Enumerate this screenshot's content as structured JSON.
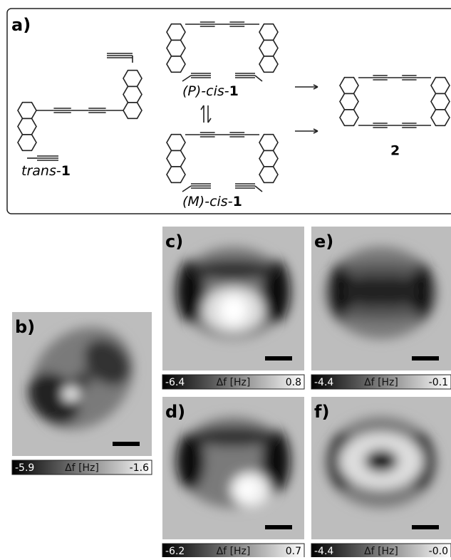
{
  "scheme": {
    "label": "a)",
    "compounds": [
      {
        "prefix": "trans-",
        "number": "1"
      },
      {
        "prefix": "(P)-cis-",
        "number": "1"
      },
      {
        "prefix": "(M)-cis-",
        "number": "1"
      },
      {
        "number": "2"
      }
    ]
  },
  "panels": [
    {
      "label": "b)",
      "colorbar": {
        "min": "-5.9",
        "unit": "Δf [Hz]",
        "max": "-1.6"
      }
    },
    {
      "label": "c)",
      "colorbar": {
        "min": "-6.4",
        "unit": "Δf [Hz]",
        "max": "0.8"
      }
    },
    {
      "label": "d)",
      "colorbar": {
        "min": "-6.2",
        "unit": "Δf [Hz]",
        "max": "0.7"
      }
    },
    {
      "label": "e)",
      "colorbar": {
        "min": "-4.4",
        "unit": "Δf [Hz]",
        "max": "-0.1"
      }
    },
    {
      "label": "f)",
      "colorbar": {
        "min": "-4.4",
        "unit": "Δf [Hz]",
        "max": "-0.0"
      }
    }
  ]
}
